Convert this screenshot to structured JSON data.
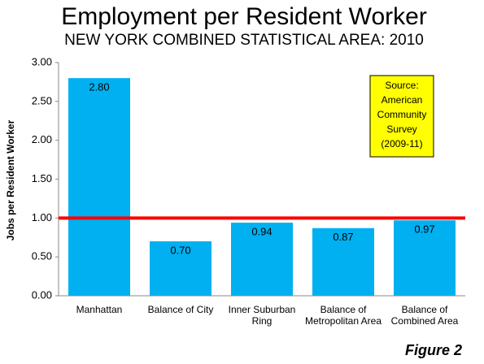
{
  "chart_data": {
    "type": "bar",
    "title": "Employment per Resident Worker",
    "subtitle": "NEW YORK COMBINED STATISTICAL AREA: 2010",
    "y_label": "Jobs per Resident Worker",
    "categories": [
      "Manhattan",
      "Balance of City",
      "Inner Suburban Ring",
      "Balance of Metropolitan Area",
      "Balance of Combined Area"
    ],
    "values": [
      2.8,
      0.7,
      0.94,
      0.87,
      0.97
    ],
    "value_labels": [
      "2.80",
      "0.70",
      "0.94",
      "0.87",
      "0.97"
    ],
    "color": "#00b0f0",
    "ylim": [
      0,
      3
    ],
    "yticks": [
      {
        "value": 0,
        "label": "0.00"
      },
      {
        "value": 0.5,
        "label": "0.50"
      },
      {
        "value": 1,
        "label": "1.00"
      },
      {
        "value": 1.5,
        "label": "1.50"
      },
      {
        "value": 2,
        "label": "2.00"
      },
      {
        "value": 2.5,
        "label": "2.50"
      },
      {
        "value": 3,
        "label": "3.00"
      }
    ],
    "reference_line": {
      "value": 1,
      "color": "#ff0000"
    },
    "annotation": [
      "Source:",
      "American",
      "Community",
      "Survey",
      "(2009-11)"
    ],
    "annotation_color": "#ffff00",
    "figure_label": "Figure 2"
  }
}
